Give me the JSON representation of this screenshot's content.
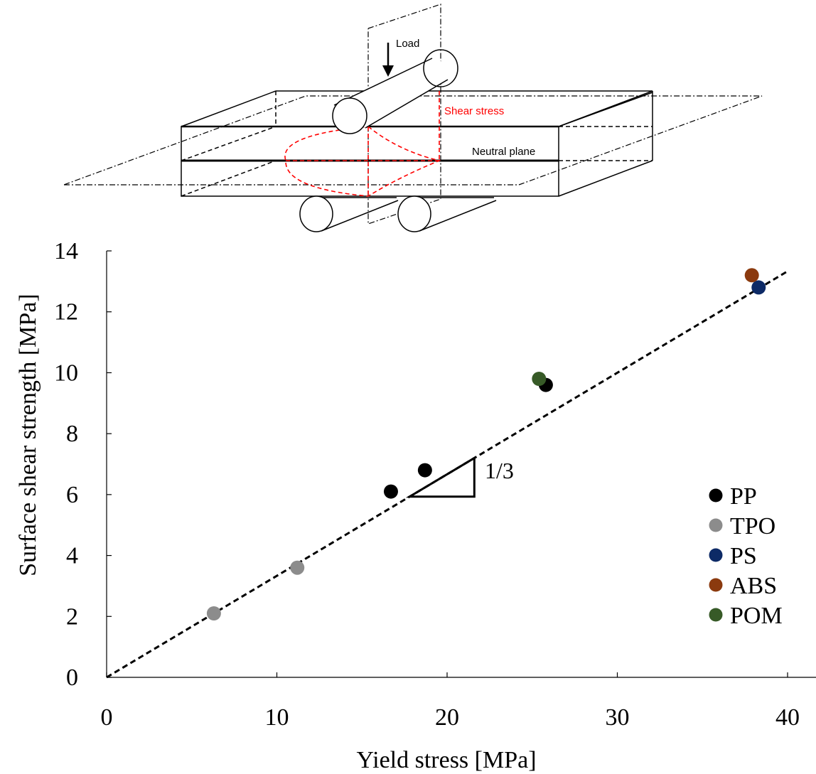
{
  "diagram": {
    "load_label": "Load",
    "shear_label": "Shear stress",
    "neutral_label": "Neutral plane",
    "shear_color": "#ff0000"
  },
  "chart_data": {
    "type": "scatter",
    "xlabel": "Yield stress [MPa]",
    "ylabel": "Surface shear strength [MPa]",
    "xlim": [
      0,
      40
    ],
    "ylim": [
      0,
      14
    ],
    "x_ticks": [
      0,
      10,
      20,
      30,
      40
    ],
    "y_ticks": [
      0,
      2,
      4,
      6,
      8,
      10,
      12,
      14
    ],
    "grid": false,
    "legend_position": "bottom-right",
    "series": [
      {
        "name": "PP",
        "color": "#000000",
        "points": [
          [
            16.7,
            6.1
          ],
          [
            18.7,
            6.8
          ],
          [
            25.8,
            9.6
          ]
        ]
      },
      {
        "name": "TPO",
        "color": "#8c8c8c",
        "points": [
          [
            6.3,
            2.1
          ],
          [
            11.2,
            3.6
          ]
        ]
      },
      {
        "name": "PS",
        "color": "#0d2a66",
        "points": [
          [
            38.3,
            12.8
          ]
        ]
      },
      {
        "name": "ABS",
        "color": "#8b3a0e",
        "points": [
          [
            37.9,
            13.2
          ]
        ]
      },
      {
        "name": "POM",
        "color": "#375a27",
        "points": [
          [
            25.4,
            9.8
          ]
        ]
      }
    ],
    "fit_line": {
      "slope": 0.3333,
      "style": "dashed"
    },
    "slope_annotation": "1/3"
  }
}
